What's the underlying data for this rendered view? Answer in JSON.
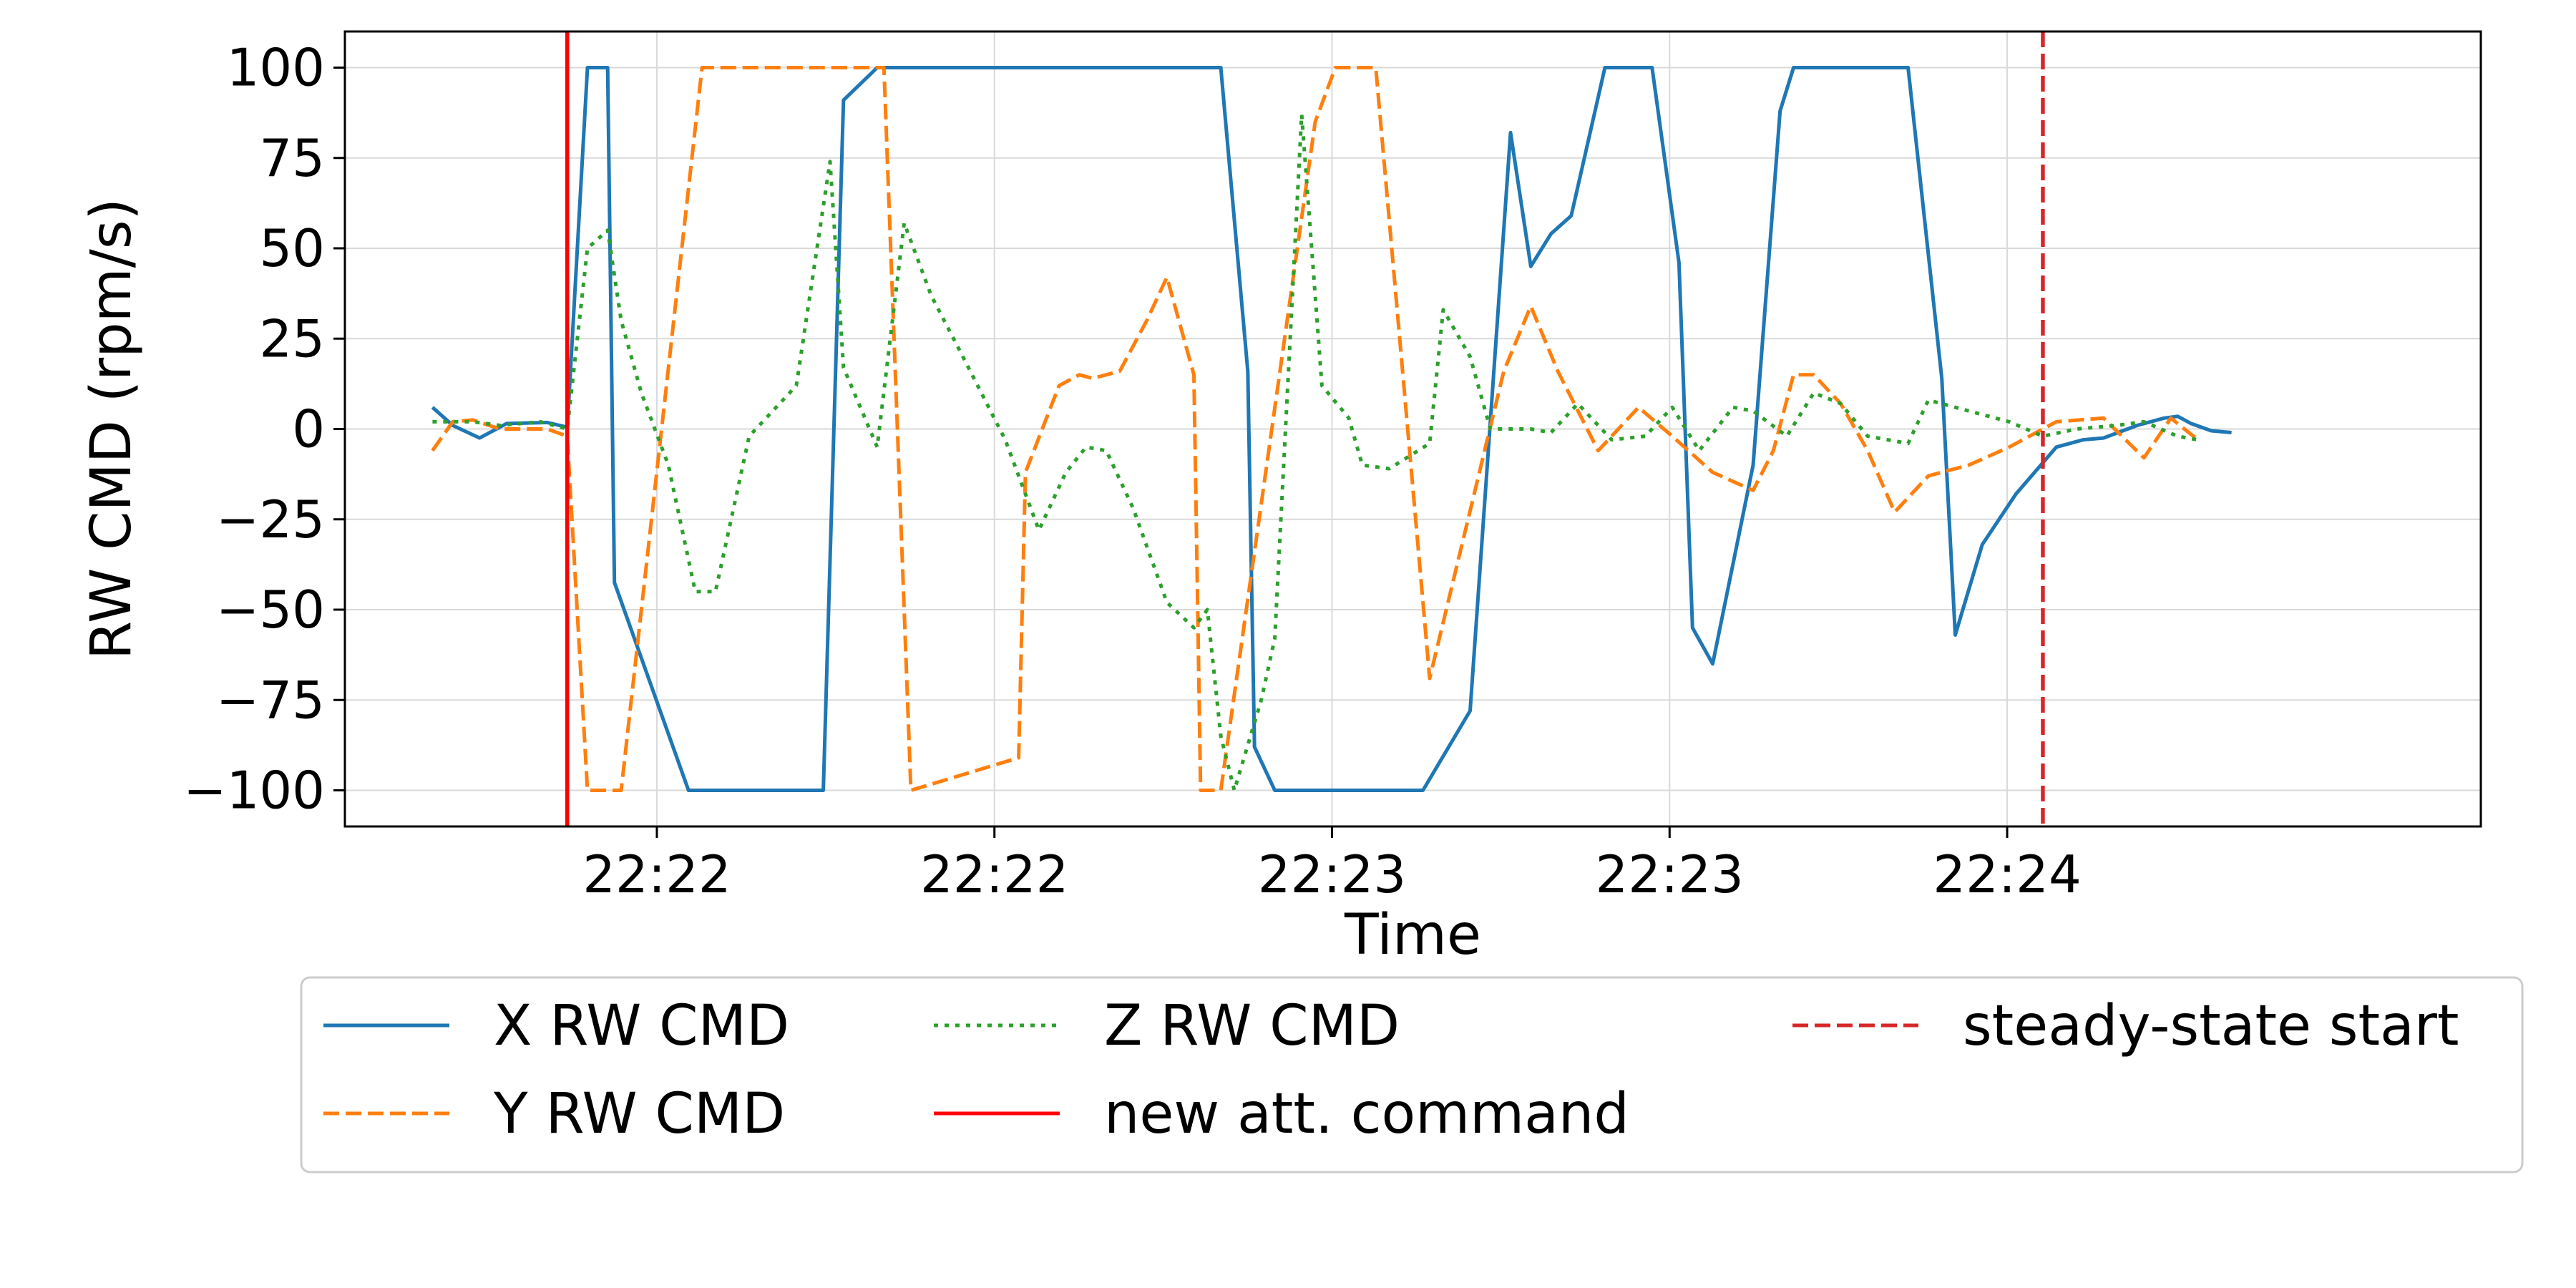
{
  "chart_data": {
    "type": "line",
    "title": "",
    "xlabel": "Time",
    "ylabel": "RW CMD (rpm/s)",
    "xlim": [
      0,
      3.17
    ],
    "ylim": [
      -110,
      110
    ],
    "x_ticks": [
      {
        "x": 0.463,
        "label": "22:22"
      },
      {
        "x": 0.964,
        "label": "22:22"
      },
      {
        "x": 1.465,
        "label": "22:23"
      },
      {
        "x": 1.966,
        "label": "22:23"
      },
      {
        "x": 2.467,
        "label": "22:24"
      }
    ],
    "y_ticks": [
      100,
      75,
      50,
      25,
      0,
      -25,
      -50,
      -75,
      -100
    ],
    "y_tick_labels": [
      "100",
      "75",
      "50",
      "25",
      "0",
      "−25",
      "−50",
      "−75",
      "−100"
    ],
    "grid": true,
    "legend_position": "below",
    "series": [
      {
        "name": "X RW CMD",
        "color": "#1f77b4",
        "style": "solid",
        "points": [
          [
            0.13,
            6
          ],
          [
            0.16,
            1
          ],
          [
            0.2,
            -2.5
          ],
          [
            0.24,
            1.5
          ],
          [
            0.3,
            1.8
          ],
          [
            0.33,
            0.5
          ],
          [
            0.33,
            2
          ],
          [
            0.33,
            0
          ],
          [
            0.36,
            100
          ],
          [
            0.39,
            100
          ],
          [
            0.4,
            -42.5
          ],
          [
            0.51,
            -100
          ],
          [
            0.71,
            -100
          ],
          [
            0.74,
            91
          ],
          [
            0.79,
            100
          ],
          [
            1.3,
            100
          ],
          [
            1.34,
            16
          ],
          [
            1.35,
            -88
          ],
          [
            1.38,
            -100
          ],
          [
            1.6,
            -100
          ],
          [
            1.67,
            -78
          ],
          [
            1.73,
            82
          ],
          [
            1.76,
            45
          ],
          [
            1.79,
            54
          ],
          [
            1.82,
            59
          ],
          [
            1.87,
            100
          ],
          [
            1.94,
            100
          ],
          [
            1.98,
            46
          ],
          [
            2.0,
            -55
          ],
          [
            2.03,
            -65
          ],
          [
            2.09,
            -10
          ],
          [
            2.13,
            88
          ],
          [
            2.15,
            100
          ],
          [
            2.32,
            100
          ],
          [
            2.37,
            14
          ],
          [
            2.39,
            -57
          ],
          [
            2.43,
            -32
          ],
          [
            2.48,
            -18
          ],
          [
            2.54,
            -5
          ],
          [
            2.58,
            -3
          ],
          [
            2.61,
            -2.5
          ],
          [
            2.66,
            1
          ],
          [
            2.7,
            3
          ],
          [
            2.72,
            3.5
          ],
          [
            2.74,
            1.5
          ],
          [
            2.77,
            -0.5
          ],
          [
            2.8,
            -1
          ]
        ]
      },
      {
        "name": "Y RW CMD",
        "color": "#ff7f0e",
        "style": "dashed",
        "points": [
          [
            0.13,
            -6
          ],
          [
            0.16,
            2
          ],
          [
            0.19,
            2.5
          ],
          [
            0.23,
            0
          ],
          [
            0.3,
            0
          ],
          [
            0.33,
            -2
          ],
          [
            0.36,
            -100
          ],
          [
            0.41,
            -100
          ],
          [
            0.53,
            100
          ],
          [
            0.8,
            100
          ],
          [
            0.84,
            -100
          ],
          [
            1.0,
            -91
          ],
          [
            1.01,
            -12
          ],
          [
            1.06,
            12
          ],
          [
            1.09,
            15
          ],
          [
            1.11,
            14
          ],
          [
            1.15,
            16
          ],
          [
            1.19,
            30
          ],
          [
            1.22,
            42
          ],
          [
            1.26,
            15
          ],
          [
            1.27,
            -100
          ],
          [
            1.3,
            -100
          ],
          [
            1.44,
            85
          ],
          [
            1.47,
            100
          ],
          [
            1.53,
            100
          ],
          [
            1.61,
            -69
          ],
          [
            1.72,
            16
          ],
          [
            1.76,
            34
          ],
          [
            1.8,
            16
          ],
          [
            1.86,
            -6
          ],
          [
            1.92,
            6
          ],
          [
            1.97,
            -2
          ],
          [
            2.03,
            -12
          ],
          [
            2.09,
            -17
          ],
          [
            2.12,
            -6
          ],
          [
            2.15,
            15
          ],
          [
            2.18,
            15
          ],
          [
            2.22,
            7
          ],
          [
            2.26,
            -6
          ],
          [
            2.3,
            -23
          ],
          [
            2.35,
            -13
          ],
          [
            2.41,
            -10
          ],
          [
            2.47,
            -5
          ],
          [
            2.54,
            2
          ],
          [
            2.61,
            3
          ],
          [
            2.67,
            -8
          ],
          [
            2.71,
            3
          ],
          [
            2.75,
            -3
          ]
        ]
      },
      {
        "name": "Z RW CMD",
        "color": "#2ca02c",
        "style": "dotted",
        "points": [
          [
            0.13,
            2
          ],
          [
            0.19,
            2
          ],
          [
            0.23,
            1
          ],
          [
            0.29,
            2
          ],
          [
            0.33,
            0
          ],
          [
            0.36,
            50
          ],
          [
            0.39,
            55
          ],
          [
            0.41,
            30
          ],
          [
            0.44,
            10
          ],
          [
            0.48,
            -10
          ],
          [
            0.52,
            -45
          ],
          [
            0.55,
            -45
          ],
          [
            0.6,
            -2
          ],
          [
            0.67,
            12
          ],
          [
            0.72,
            74
          ],
          [
            0.74,
            17
          ],
          [
            0.79,
            -5
          ],
          [
            0.83,
            57
          ],
          [
            0.87,
            37
          ],
          [
            0.92,
            19
          ],
          [
            0.98,
            -3
          ],
          [
            1.03,
            -28
          ],
          [
            1.07,
            -12
          ],
          [
            1.1,
            -5
          ],
          [
            1.13,
            -6
          ],
          [
            1.17,
            -22
          ],
          [
            1.22,
            -48
          ],
          [
            1.26,
            -55
          ],
          [
            1.28,
            -50
          ],
          [
            1.3,
            -85
          ],
          [
            1.32,
            -100
          ],
          [
            1.36,
            -75
          ],
          [
            1.38,
            -58
          ],
          [
            1.42,
            87
          ],
          [
            1.45,
            12
          ],
          [
            1.49,
            3
          ],
          [
            1.51,
            -10
          ],
          [
            1.55,
            -11
          ],
          [
            1.61,
            -4
          ],
          [
            1.63,
            33
          ],
          [
            1.67,
            20
          ],
          [
            1.7,
            0
          ],
          [
            1.76,
            0
          ],
          [
            1.79,
            -1
          ],
          [
            1.83,
            7
          ],
          [
            1.88,
            -3
          ],
          [
            1.93,
            -2
          ],
          [
            1.97,
            6
          ],
          [
            2.01,
            -6
          ],
          [
            2.06,
            6
          ],
          [
            2.09,
            5
          ],
          [
            2.14,
            -2
          ],
          [
            2.18,
            10
          ],
          [
            2.22,
            7
          ],
          [
            2.26,
            -2
          ],
          [
            2.32,
            -4
          ],
          [
            2.35,
            8
          ],
          [
            2.41,
            5
          ],
          [
            2.47,
            2
          ],
          [
            2.52,
            -2
          ],
          [
            2.57,
            0
          ],
          [
            2.63,
            1
          ],
          [
            2.67,
            2
          ],
          [
            2.72,
            -2
          ],
          [
            2.75,
            -3
          ]
        ]
      },
      {
        "name": "new att. command",
        "color": "#ff0000",
        "style": "solid",
        "vline": 0.33
      },
      {
        "name": "steady-state start",
        "color": "#d62728",
        "style": "dashed",
        "vline": 2.52
      }
    ]
  }
}
